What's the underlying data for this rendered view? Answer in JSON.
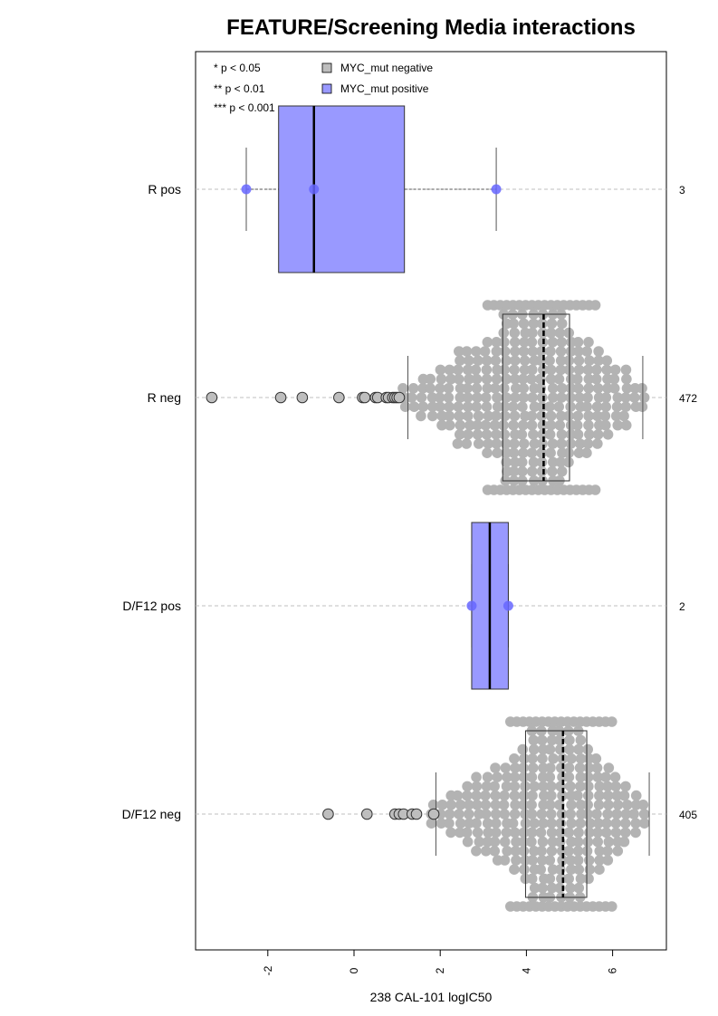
{
  "chart_data": {
    "type": "box-beeswarm",
    "title": "FEATURE/Screening Media interactions",
    "xlabel": "238 CAL-101 logIC50",
    "xlim": [
      -3.6,
      7.3
    ],
    "xticks": [
      "-2",
      "0",
      "2",
      "4",
      "6"
    ],
    "xtick_values": [
      -2,
      0,
      2,
      4,
      6
    ],
    "significance_legend": [
      "* p < 0.05",
      "** p < 0.01",
      "*** p < 0.001"
    ],
    "legend": [
      {
        "label": "MYC_mut negative",
        "color": "#bebebe"
      },
      {
        "label": "MYC_mut positive",
        "color": "#9999ff"
      }
    ],
    "colors": {
      "negative_box": "#bebebe",
      "positive_box": "#9999ff",
      "negative_point": "#b3b3b3",
      "positive_point": "#6666ff",
      "grid": "#bfbfbf"
    },
    "groups": [
      {
        "label": "R pos",
        "n": "3",
        "mutation": "positive",
        "q1": -1.75,
        "median": -0.93,
        "q3": 1.17,
        "whisker_low": -2.5,
        "whisker_high": 3.3,
        "points": [
          -2.5,
          -0.93,
          3.3
        ],
        "outliers": []
      },
      {
        "label": "R neg",
        "n": "472",
        "mutation": "negative",
        "q1": 3.45,
        "median": 4.4,
        "q3": 5.0,
        "whisker_low": 1.25,
        "whisker_high": 6.7,
        "outliers": [
          -3.3,
          -1.7,
          -1.2,
          -0.35,
          0.2,
          0.25,
          0.5,
          0.55,
          0.75,
          0.8,
          0.9,
          0.95,
          1.0,
          1.05
        ]
      },
      {
        "label": "D/F12 pos",
        "n": "2",
        "mutation": "positive",
        "q1": 2.73,
        "median": 3.15,
        "q3": 3.58,
        "whisker_low": 2.73,
        "whisker_high": 3.58,
        "points": [
          2.73,
          3.58
        ],
        "outliers": []
      },
      {
        "label": "D/F12 neg",
        "n": "405",
        "mutation": "negative",
        "q1": 3.98,
        "median": 4.85,
        "q3": 5.4,
        "whisker_low": 1.9,
        "whisker_high": 6.85,
        "outliers": [
          -0.6,
          0.3,
          0.95,
          1.05,
          1.15,
          1.35,
          1.45,
          1.85
        ]
      }
    ]
  }
}
